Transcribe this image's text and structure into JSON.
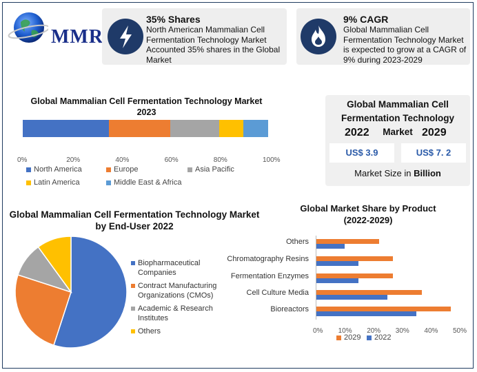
{
  "logo": {
    "text": "MMR",
    "icon": "globe-icon"
  },
  "card1": {
    "title": "35% Shares",
    "body": "North American Mammalian Cell Fermentation Technology Market Accounted 35% shares in the Global Market",
    "icon": "lightning-icon"
  },
  "card2": {
    "title": "9% CAGR",
    "body": "Global Mammalian Cell Fermentation Technology Market is expected to grow at a CAGR of 9% during 2023-2029",
    "icon": "flame-icon"
  },
  "market_size": {
    "title": "Global Mammalian Cell Fermentation Technology Market",
    "year1": "2022",
    "year2": "2029",
    "value1": "US$ 3.9",
    "value2": "US$ 7. 2",
    "caption_prefix": "Market Size in ",
    "caption_bold": "Billion"
  },
  "colors": {
    "blue": "#4472c4",
    "orange": "#ed7d31",
    "gray": "#a5a5a5",
    "yellow": "#ffc000",
    "lightblue": "#5b9bd5",
    "navy": "#1f3a68"
  },
  "chart_data": [
    {
      "type": "bar",
      "orientation": "horizontal-stacked",
      "title": "Global Mammalian Cell Fermentation Technology Market 2023",
      "series": [
        {
          "name": "North America",
          "value": 35
        },
        {
          "name": "Europe",
          "value": 25
        },
        {
          "name": "Asia Pacific",
          "value": 20
        },
        {
          "name": "Latin America",
          "value": 10
        },
        {
          "name": "Middle East & Africa",
          "value": 10
        }
      ],
      "ticks": [
        "0%",
        "20%",
        "40%",
        "60%",
        "80%",
        "100%"
      ],
      "xlim": [
        0,
        100
      ],
      "legend": "bottom"
    },
    {
      "type": "pie",
      "title": "Global Mammalian Cell Fermentation Technology Market by End-User 2022",
      "slices": [
        {
          "name": "Biopharmaceutical Companies",
          "value": 55
        },
        {
          "name": "Contract Manufacturing Organizations (CMOs)",
          "value": 25
        },
        {
          "name": "Academic & Research Institutes",
          "value": 10
        },
        {
          "name": "Others",
          "value": 10
        }
      ],
      "legend": "right"
    },
    {
      "type": "bar",
      "orientation": "horizontal",
      "title": "Global Market Share by Product (2022-2029)",
      "categories": [
        "Others",
        "Chromatography Resins",
        "Fermentation Enzymes",
        "Cell Culture Media",
        "Bioreactors"
      ],
      "series": [
        {
          "name": "2029",
          "values": [
            22,
            27,
            27,
            37,
            47
          ]
        },
        {
          "name": "2022",
          "values": [
            10,
            15,
            15,
            25,
            35
          ]
        }
      ],
      "ticks": [
        "0%",
        "10%",
        "20%",
        "30%",
        "40%",
        "50%"
      ],
      "xlim": [
        0,
        50
      ],
      "legend": "bottom"
    }
  ]
}
